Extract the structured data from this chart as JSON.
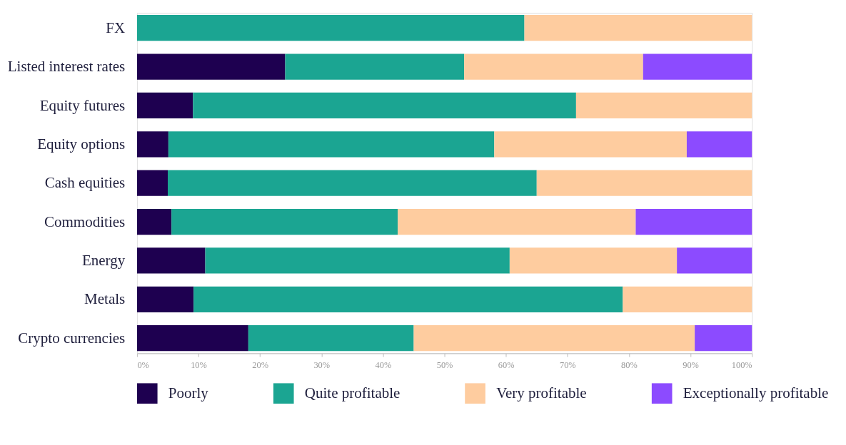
{
  "chart_data": {
    "type": "bar",
    "orientation": "horizontal",
    "stacked": true,
    "legend": "bottom",
    "grid": false,
    "categories": [
      "FX",
      "Listed interest rates",
      "Equity futures",
      "Equity options",
      "Cash equities",
      "Commodities",
      "Energy",
      "Metals",
      "Crypto currencies"
    ],
    "xlim": [
      0,
      100
    ],
    "xticks": [
      {
        "value": 0,
        "label": "0%"
      },
      {
        "value": 10,
        "label": "10%"
      },
      {
        "value": 20,
        "label": "20%"
      },
      {
        "value": 30,
        "label": "30%"
      },
      {
        "value": 40,
        "label": "40%"
      },
      {
        "value": 50,
        "label": "50%"
      },
      {
        "value": 60,
        "label": "60%"
      },
      {
        "value": 70,
        "label": "70%"
      },
      {
        "value": 80,
        "label": "80%"
      },
      {
        "value": 90,
        "label": "90%"
      },
      {
        "value": 100,
        "label": "100%"
      }
    ],
    "series": [
      {
        "name": "Poorly",
        "color": "#1e0050",
        "values": [
          null,
          24.1,
          9.1,
          5.1,
          5.0,
          5.6,
          11.1,
          9.2,
          18.1
        ]
      },
      {
        "name": "Quite profitable",
        "color": "#1ba592",
        "values": [
          63.0,
          29.1,
          62.3,
          53.0,
          60.0,
          36.8,
          49.5,
          69.8,
          26.9
        ]
      },
      {
        "name": "Very profitable",
        "color": "#fecc9f",
        "values": [
          37.0,
          29.1,
          28.6,
          31.3,
          35.0,
          38.7,
          27.2,
          21.0,
          45.7
        ]
      },
      {
        "name": "Exceptionally profitable",
        "color": "#8c4bff",
        "values": [
          null,
          17.7,
          null,
          10.6,
          null,
          18.9,
          12.2,
          null,
          9.3
        ]
      }
    ]
  }
}
